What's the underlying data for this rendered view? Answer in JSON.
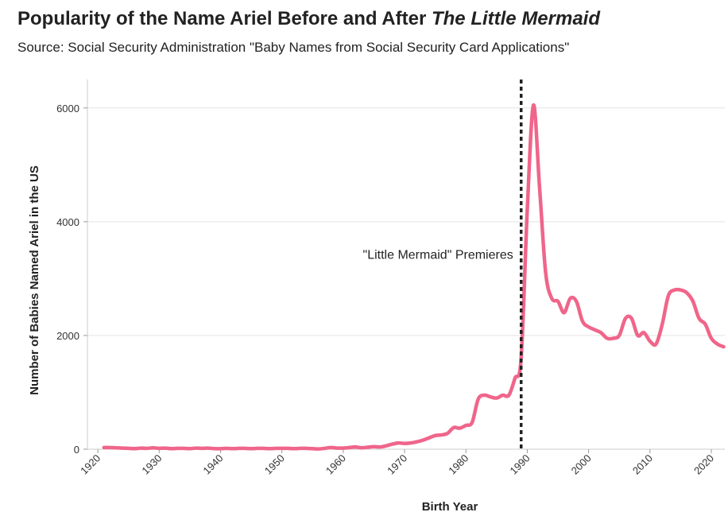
{
  "header": {
    "title_main": "Popularity of the Name Ariel Before and After ",
    "title_italic": "The Little Mermaid",
    "subtitle": "Source: Social Security Administration \"Baby Names from Social Security Card Applications\""
  },
  "chart_data": {
    "type": "line",
    "xlabel": "Birth Year",
    "ylabel": "Number of Babies Named Ariel in the US",
    "xlim": [
      1920,
      2022
    ],
    "ylim": [
      0,
      6500
    ],
    "x_ticks": [
      1920,
      1930,
      1940,
      1950,
      1960,
      1970,
      1980,
      1990,
      2000,
      2010,
      2020
    ],
    "y_ticks": [
      0,
      2000,
      4000,
      6000
    ],
    "grid": "horizontal",
    "line_color": "#f0658a",
    "annotation": {
      "text": "\"Little Mermaid\" Premieres",
      "x": 1989
    },
    "series": [
      {
        "x": [
          1921,
          1922,
          1923,
          1924,
          1925,
          1926,
          1927,
          1928,
          1929,
          1930,
          1931,
          1932,
          1933,
          1934,
          1935,
          1936,
          1937,
          1938,
          1939,
          1940,
          1941,
          1942,
          1943,
          1944,
          1945,
          1946,
          1947,
          1948,
          1949,
          1950,
          1951,
          1952,
          1953,
          1954,
          1955,
          1956,
          1957,
          1958,
          1959,
          1960,
          1961,
          1962,
          1963,
          1964,
          1965,
          1966,
          1967,
          1968,
          1969,
          1970,
          1971,
          1972,
          1973,
          1974,
          1975,
          1976,
          1977,
          1978,
          1979,
          1980,
          1981,
          1982,
          1983,
          1984,
          1985,
          1986,
          1987,
          1988,
          1989,
          1990,
          1991,
          1992,
          1993,
          1994,
          1995,
          1996,
          1997,
          1998,
          1999,
          2000,
          2001,
          2002,
          2003,
          2004,
          2005,
          2006,
          2007,
          2008,
          2009,
          2010,
          2011,
          2012,
          2013,
          2014,
          2015,
          2016,
          2017,
          2018,
          2019,
          2020,
          2021,
          2022
        ],
        "values": [
          30,
          30,
          25,
          20,
          15,
          10,
          20,
          15,
          25,
          15,
          20,
          10,
          15,
          15,
          10,
          20,
          15,
          20,
          10,
          10,
          15,
          10,
          15,
          15,
          10,
          15,
          15,
          10,
          15,
          15,
          15,
          10,
          15,
          15,
          10,
          5,
          15,
          30,
          20,
          20,
          30,
          40,
          25,
          35,
          45,
          40,
          60,
          90,
          110,
          100,
          110,
          130,
          160,
          200,
          240,
          250,
          280,
          380,
          370,
          420,
          470,
          880,
          950,
          920,
          900,
          950,
          950,
          1250,
          1600,
          4200,
          6050,
          4600,
          3100,
          2650,
          2600,
          2400,
          2650,
          2600,
          2250,
          2150,
          2100,
          2050,
          1950,
          1950,
          2000,
          2300,
          2300,
          2000,
          2050,
          1900,
          1850,
          2200,
          2700,
          2800,
          2800,
          2750,
          2600,
          2300,
          2200,
          1950,
          1850,
          1800
        ]
      }
    ]
  }
}
